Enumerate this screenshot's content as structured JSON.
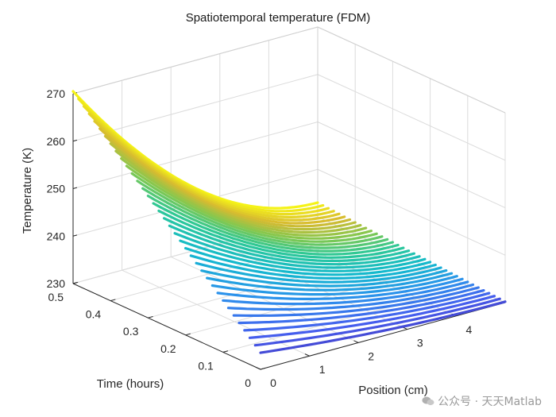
{
  "chart_data": {
    "type": "line",
    "title": "Spatiotemporal temperature (FDM)",
    "xlabel": "Position (cm)",
    "ylabel": "Time (hours)",
    "zlabel": "Temperature (K)",
    "x_range": [
      0,
      5
    ],
    "y_range": [
      0,
      0.5
    ],
    "z_range": [
      230,
      270
    ],
    "x_ticks": [
      "0",
      "1",
      "2",
      "3",
      "4"
    ],
    "y_ticks": [
      "0",
      "0.1",
      "0.2",
      "0.3",
      "0.4",
      "0.5"
    ],
    "z_ticks": [
      "230",
      "240",
      "250",
      "260",
      "270"
    ],
    "grid": true,
    "colormap": "parula",
    "time_lines": 36,
    "time_range": [
      0,
      0.5
    ],
    "position_range": [
      0,
      5
    ],
    "temperature_at_position_0": {
      "t_start": 233.5,
      "t_end": 270.5
    },
    "temperature_at_position_5": {
      "t_start": 230.2,
      "t_end": 233
    }
  },
  "watermark": {
    "text": "公众号 · 天天Matlab"
  }
}
